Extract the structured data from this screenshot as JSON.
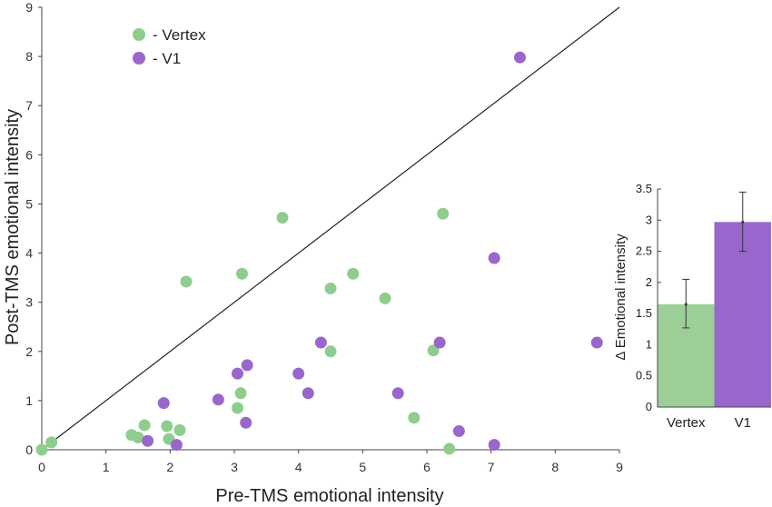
{
  "chart_data": [
    {
      "type": "scatter",
      "xlabel": "Pre-TMS emotional intensity",
      "ylabel": "Post-TMS emotional intensity",
      "xlim": [
        0,
        9
      ],
      "ylim": [
        0,
        9
      ],
      "xticks": [
        "0",
        "1",
        "2",
        "3",
        "4",
        "5",
        "6",
        "7",
        "8",
        "9"
      ],
      "yticks": [
        "0",
        "1",
        "2",
        "3",
        "4",
        "5",
        "6",
        "7",
        "8",
        "9"
      ],
      "reference_line": "y = x",
      "legend_position": "top-left",
      "series": [
        {
          "name": "- Vertex",
          "color": "#8fcd8f",
          "points": [
            [
              0.0,
              0.0
            ],
            [
              0.15,
              0.15
            ],
            [
              1.4,
              0.3
            ],
            [
              1.5,
              0.25
            ],
            [
              1.6,
              0.5
            ],
            [
              1.95,
              0.48
            ],
            [
              1.98,
              0.22
            ],
            [
              2.15,
              0.4
            ],
            [
              2.25,
              3.42
            ],
            [
              3.05,
              0.85
            ],
            [
              3.1,
              1.15
            ],
            [
              3.12,
              3.58
            ],
            [
              3.75,
              4.72
            ],
            [
              4.5,
              3.28
            ],
            [
              4.5,
              2.0
            ],
            [
              4.85,
              3.58
            ],
            [
              5.35,
              3.08
            ],
            [
              5.8,
              0.65
            ],
            [
              6.1,
              2.02
            ],
            [
              6.25,
              4.8
            ],
            [
              6.35,
              0.02
            ]
          ]
        },
        {
          "name": "- V1",
          "color": "#9966cc",
          "points": [
            [
              1.65,
              0.18
            ],
            [
              1.9,
              0.95
            ],
            [
              2.1,
              0.1
            ],
            [
              2.75,
              1.02
            ],
            [
              3.05,
              1.55
            ],
            [
              3.18,
              0.55
            ],
            [
              3.2,
              1.72
            ],
            [
              4.0,
              1.55
            ],
            [
              4.15,
              1.15
            ],
            [
              4.35,
              2.18
            ],
            [
              5.55,
              1.15
            ],
            [
              6.2,
              2.18
            ],
            [
              6.5,
              0.38
            ],
            [
              7.05,
              0.1
            ],
            [
              7.05,
              3.9
            ],
            [
              7.45,
              7.98
            ],
            [
              8.65,
              2.18
            ]
          ]
        }
      ]
    },
    {
      "type": "bar",
      "ylabel": "Δ Emotional intensity",
      "ylim": [
        0,
        3.5
      ],
      "yticks": [
        "0",
        "0.5",
        "1",
        "1.5",
        "2",
        "2.5",
        "3",
        "3.5"
      ],
      "categories": [
        "Vertex",
        "V1"
      ],
      "values": [
        1.65,
        2.97
      ],
      "error_low": [
        1.27,
        2.5
      ],
      "error_high": [
        2.05,
        3.45
      ],
      "colors": [
        "#9ccf97",
        "#9966cc"
      ]
    }
  ]
}
